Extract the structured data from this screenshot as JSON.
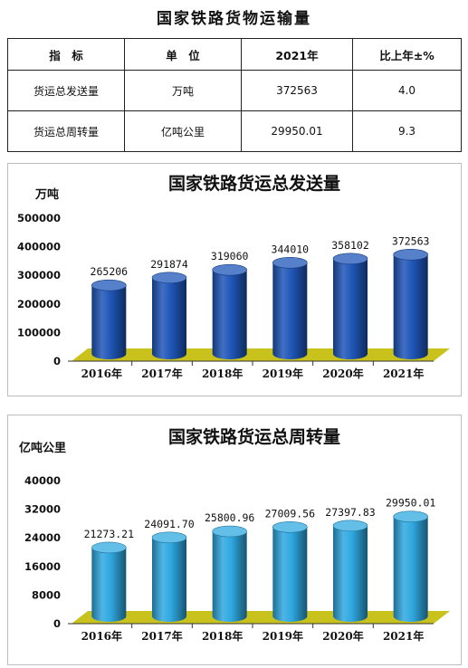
{
  "page_title": "国家铁路货物运输量",
  "table": {
    "headers": [
      "指　标",
      "单　位",
      "2021年",
      "比上年±%"
    ],
    "rows": [
      [
        "货运总发送量",
        "万吨",
        "372563",
        "4.0"
      ],
      [
        "货运总周转量",
        "亿吨公里",
        "29950.01",
        "9.3"
      ]
    ]
  },
  "colors": {
    "bar1": "#1f56b8",
    "bar2": "#2fa8e0",
    "floor": "#c9c21c"
  },
  "chart_data": [
    {
      "type": "bar",
      "title": "国家铁路货运总发送量",
      "ylabel": "万吨",
      "categories": [
        "2016年",
        "2017年",
        "2018年",
        "2019年",
        "2020年",
        "2021年"
      ],
      "values": [
        265206,
        291874,
        319060,
        344010,
        358102,
        372563
      ],
      "value_labels": [
        "265206",
        "291874",
        "319060",
        "344010",
        "358102",
        "372563"
      ],
      "yticks": [
        "0",
        "100000",
        "200000",
        "300000",
        "400000",
        "500000"
      ],
      "ylim": [
        0,
        500000
      ]
    },
    {
      "type": "bar",
      "title": "国家铁路货运总周转量",
      "ylabel": "亿吨公里",
      "categories": [
        "2016年",
        "2017年",
        "2018年",
        "2019年",
        "2020年",
        "2021年"
      ],
      "values": [
        21273.21,
        24091.7,
        25800.96,
        27009.56,
        27397.83,
        29950.01
      ],
      "value_labels": [
        "21273.21",
        "24091.70",
        "25800.96",
        "27009.56",
        "27397.83",
        "29950.01"
      ],
      "yticks": [
        "0",
        "8000",
        "16000",
        "24000",
        "32000",
        "40000"
      ],
      "ylim": [
        0,
        40000
      ]
    }
  ]
}
